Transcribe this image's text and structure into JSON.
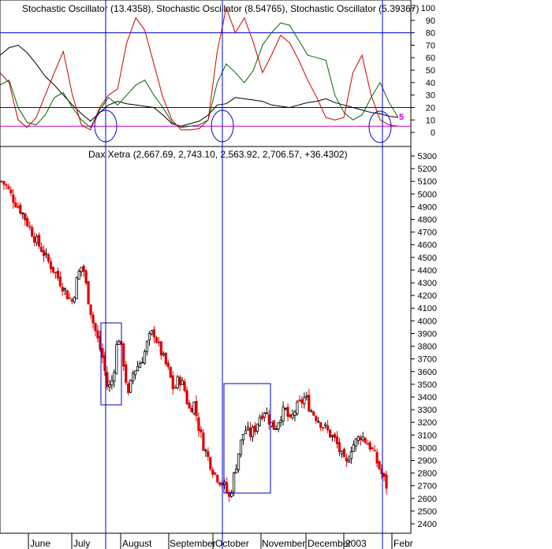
{
  "chart_data": [
    {
      "panel": "oscillator",
      "type": "line",
      "title": "Stochastic Oscillator (13.4358), Stochastic Oscillator (8.54765), Stochastic Oscillator (5.39367)",
      "ylim": [
        -5,
        100
      ],
      "yticks": [
        100,
        90,
        80,
        70,
        60,
        50,
        40,
        30,
        20,
        10,
        0
      ],
      "reference_levels": [
        {
          "value": 80,
          "color": "#0000cc"
        },
        {
          "value": 20,
          "color": "#0000cc"
        },
        {
          "value": 5,
          "color": "#cc00cc",
          "label": "5"
        }
      ],
      "series": [
        {
          "color": "#000000",
          "values": [
            62,
            68,
            70,
            64,
            55,
            45,
            38,
            30,
            22,
            15,
            9,
            16,
            22,
            25,
            23,
            22,
            21,
            20,
            14,
            7,
            5,
            7,
            9,
            14,
            22,
            23,
            28,
            27,
            26,
            25,
            22,
            21,
            20,
            22,
            24,
            25,
            27,
            24,
            22,
            20,
            18,
            16,
            15,
            13,
            12
          ]
        },
        {
          "color": "#006600",
          "values": [
            38,
            42,
            20,
            8,
            6,
            14,
            28,
            32,
            20,
            10,
            4,
            18,
            28,
            22,
            30,
            38,
            42,
            30,
            20,
            8,
            4,
            5,
            6,
            10,
            40,
            55,
            48,
            40,
            50,
            70,
            80,
            88,
            86,
            74,
            62,
            60,
            58,
            30,
            16,
            10,
            14,
            28,
            40,
            24,
            12
          ]
        },
        {
          "color": "#cc0000",
          "values": [
            48,
            40,
            10,
            4,
            12,
            30,
            48,
            65,
            30,
            6,
            2,
            20,
            30,
            35,
            72,
            92,
            82,
            55,
            28,
            10,
            2,
            2,
            3,
            10,
            65,
            100,
            80,
            92,
            72,
            48,
            62,
            78,
            72,
            58,
            42,
            28,
            12,
            10,
            12,
            48,
            62,
            30,
            10,
            6,
            5
          ]
        }
      ]
    },
    {
      "panel": "price",
      "type": "candlestick",
      "title": "Dax Xetra (2,667.69, 2,743.10, 2,563.92, 2,706.57, +36.4302)",
      "ylim": [
        2300,
        5400
      ],
      "yticks": [
        5300,
        5200,
        5100,
        5000,
        4900,
        4800,
        4700,
        4600,
        4500,
        4400,
        4300,
        4200,
        4100,
        4000,
        3900,
        3800,
        3700,
        3600,
        3500,
        3400,
        3300,
        3200,
        3100,
        3000,
        2900,
        2800,
        2700,
        2600,
        2500,
        2400
      ],
      "close_path": [
        5100,
        5060,
        4980,
        4920,
        4860,
        4780,
        4700,
        4620,
        4560,
        4480,
        4420,
        4350,
        4280,
        4200,
        4150,
        4350,
        4450,
        4200,
        4000,
        3850,
        3700,
        3450,
        3550,
        3900,
        3700,
        3400,
        3600,
        3650,
        3720,
        3850,
        3920,
        3800,
        3700,
        3600,
        3450,
        3550,
        3480,
        3300,
        3350,
        3150,
        3000,
        2900,
        2800,
        2750,
        2700,
        2600,
        2800,
        3000,
        3150,
        3100,
        3150,
        3250,
        3300,
        3200,
        3150,
        3250,
        3300,
        3200,
        3300,
        3350,
        3400,
        3300,
        3250,
        3200,
        3150,
        3100,
        3050,
        2950,
        2850,
        3000,
        3050,
        3100,
        3050,
        3000,
        2900,
        2800,
        2700
      ],
      "x_labels": [
        "June",
        "July",
        "August",
        "September",
        "October",
        "November",
        "December",
        "2003",
        "Febr"
      ]
    }
  ]
}
